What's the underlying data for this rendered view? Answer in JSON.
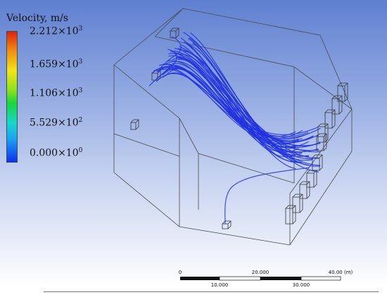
{
  "legend": {
    "title": "Velocity, m/s",
    "ticks": [
      {
        "mantissa": "2.212×10",
        "exp": "3"
      },
      {
        "mantissa": "1.659×10",
        "exp": "3"
      },
      {
        "mantissa": "1.106×10",
        "exp": "3"
      },
      {
        "mantissa": "5.529×10",
        "exp": "2"
      },
      {
        "mantissa": "0.000×10",
        "exp": "0"
      }
    ],
    "colors": [
      "#e02010",
      "#f08a10",
      "#f2e418",
      "#17d63c",
      "#18d6c8",
      "#1aa4f0",
      "#1030f0"
    ]
  },
  "scale_bar": {
    "top_labels": [
      "0",
      "20.000",
      "40.00 (m)"
    ],
    "bottom_labels": [
      "10.000",
      "30.000"
    ]
  },
  "streamline_color": "#2233dd",
  "colors": {
    "background_top": "#5f7fd0",
    "background_bottom": "#ffffff",
    "outline": "#4a4a4a"
  }
}
